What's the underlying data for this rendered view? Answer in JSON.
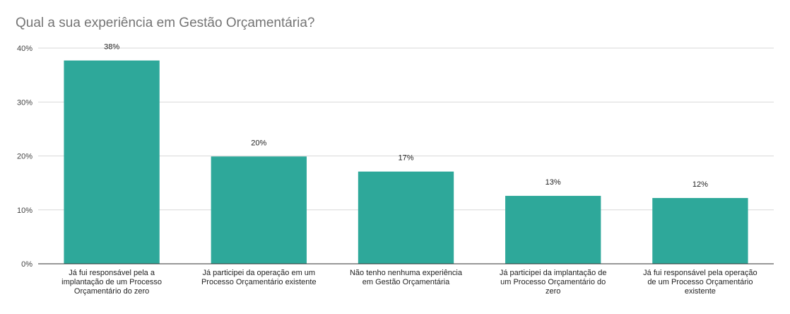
{
  "chart_data": {
    "type": "bar",
    "title": "Qual a sua experiência em Gestão Orçamentária?",
    "xlabel": "",
    "ylabel": "",
    "ylim": [
      0,
      40
    ],
    "yticks": [
      "0%",
      "10%",
      "20%",
      "30%",
      "40%"
    ],
    "grid": true,
    "legend": "none",
    "bar_color": "#2ea89a",
    "categories": [
      [
        "Já fui responsável pela a",
        "implantação de um Processo",
        "Orçamentário do zero"
      ],
      [
        "Já participei da operação em um",
        "Processo Orçamentário existente"
      ],
      [
        "Não tenho nenhuma experiência",
        "em Gestão Orçamentária"
      ],
      [
        "Já participei da implantação de",
        "um Processo Orçamentário do",
        "zero"
      ],
      [
        "Já fui responsável pela operação",
        "de um Processo Orçamentário",
        "existente"
      ]
    ],
    "values": [
      37.7,
      19.9,
      17.1,
      12.6,
      12.2
    ],
    "data_labels": [
      "38%",
      "20%",
      "17%",
      "13%",
      "12%"
    ]
  }
}
